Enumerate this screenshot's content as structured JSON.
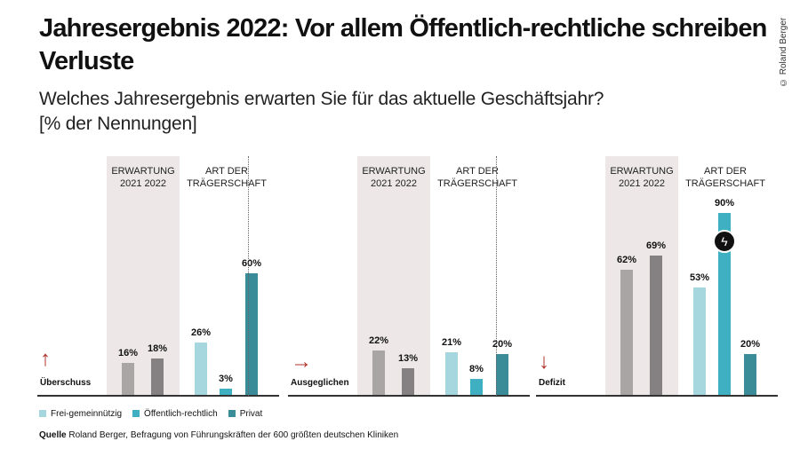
{
  "title": "Jahresergebnis 2022: Vor allem Öffentlich-rechtliche schreiben Verluste",
  "subtitle_line1": "Welches Jahresergebnis erwarten Sie für das aktuelle Geschäftsjahr?",
  "subtitle_line2": "[% der Nennungen]",
  "copyright": "© Roland Berger",
  "headers": {
    "expectation": "ERWARTUNG",
    "y2021": "2021",
    "y2022": "2022",
    "type_line1": "ART DER",
    "type_line2": "TRÄGERSCHAFT"
  },
  "legend": [
    "Frei-gemeinnützig",
    "Öffentlich-rechtlich",
    "Privat"
  ],
  "source_label": "Quelle",
  "source_text": "Roland Berger, Befragung von Führungskräften der 600 größten deutschen Kliniken",
  "colors": {
    "y2021": "#a9a5a5",
    "y2022": "#858182",
    "frei": "#a6d7df",
    "oeffentlich": "#3fb0c2",
    "privat": "#3a8d98",
    "arrow": "#b0302a",
    "shade": "#ede8e7"
  },
  "chart_data": [
    {
      "type": "bar",
      "row_label": "Überschuss",
      "icon": "arrow-up-icon",
      "categories": [
        "2021",
        "2022",
        "Frei-gemeinnützig",
        "Öffentlich-rechtlich",
        "Privat"
      ],
      "values": [
        16,
        18,
        26,
        3,
        60
      ],
      "labels": [
        "16%",
        "18%",
        "26%",
        "3%",
        "60%"
      ],
      "ylim": [
        0,
        100
      ]
    },
    {
      "type": "bar",
      "row_label": "Ausgeglichen",
      "icon": "arrow-right-icon",
      "categories": [
        "2021",
        "2022",
        "Frei-gemeinnützig",
        "Öffentlich-rechtlich",
        "Privat"
      ],
      "values": [
        22,
        13,
        21,
        8,
        20
      ],
      "labels": [
        "22%",
        "13%",
        "21%",
        "8%",
        "20%"
      ],
      "ylim": [
        0,
        100
      ]
    },
    {
      "type": "bar",
      "row_label": "Defizit",
      "icon": "arrow-down-icon",
      "categories": [
        "2021",
        "2022",
        "Frei-gemeinnützig",
        "Öffentlich-rechtlich",
        "Privat"
      ],
      "values": [
        62,
        69,
        53,
        90,
        20
      ],
      "labels": [
        "62%",
        "69%",
        "53%",
        "90%",
        "20%"
      ],
      "ylim": [
        0,
        100
      ],
      "highlight": "Öffentlich-rechtlich"
    }
  ]
}
